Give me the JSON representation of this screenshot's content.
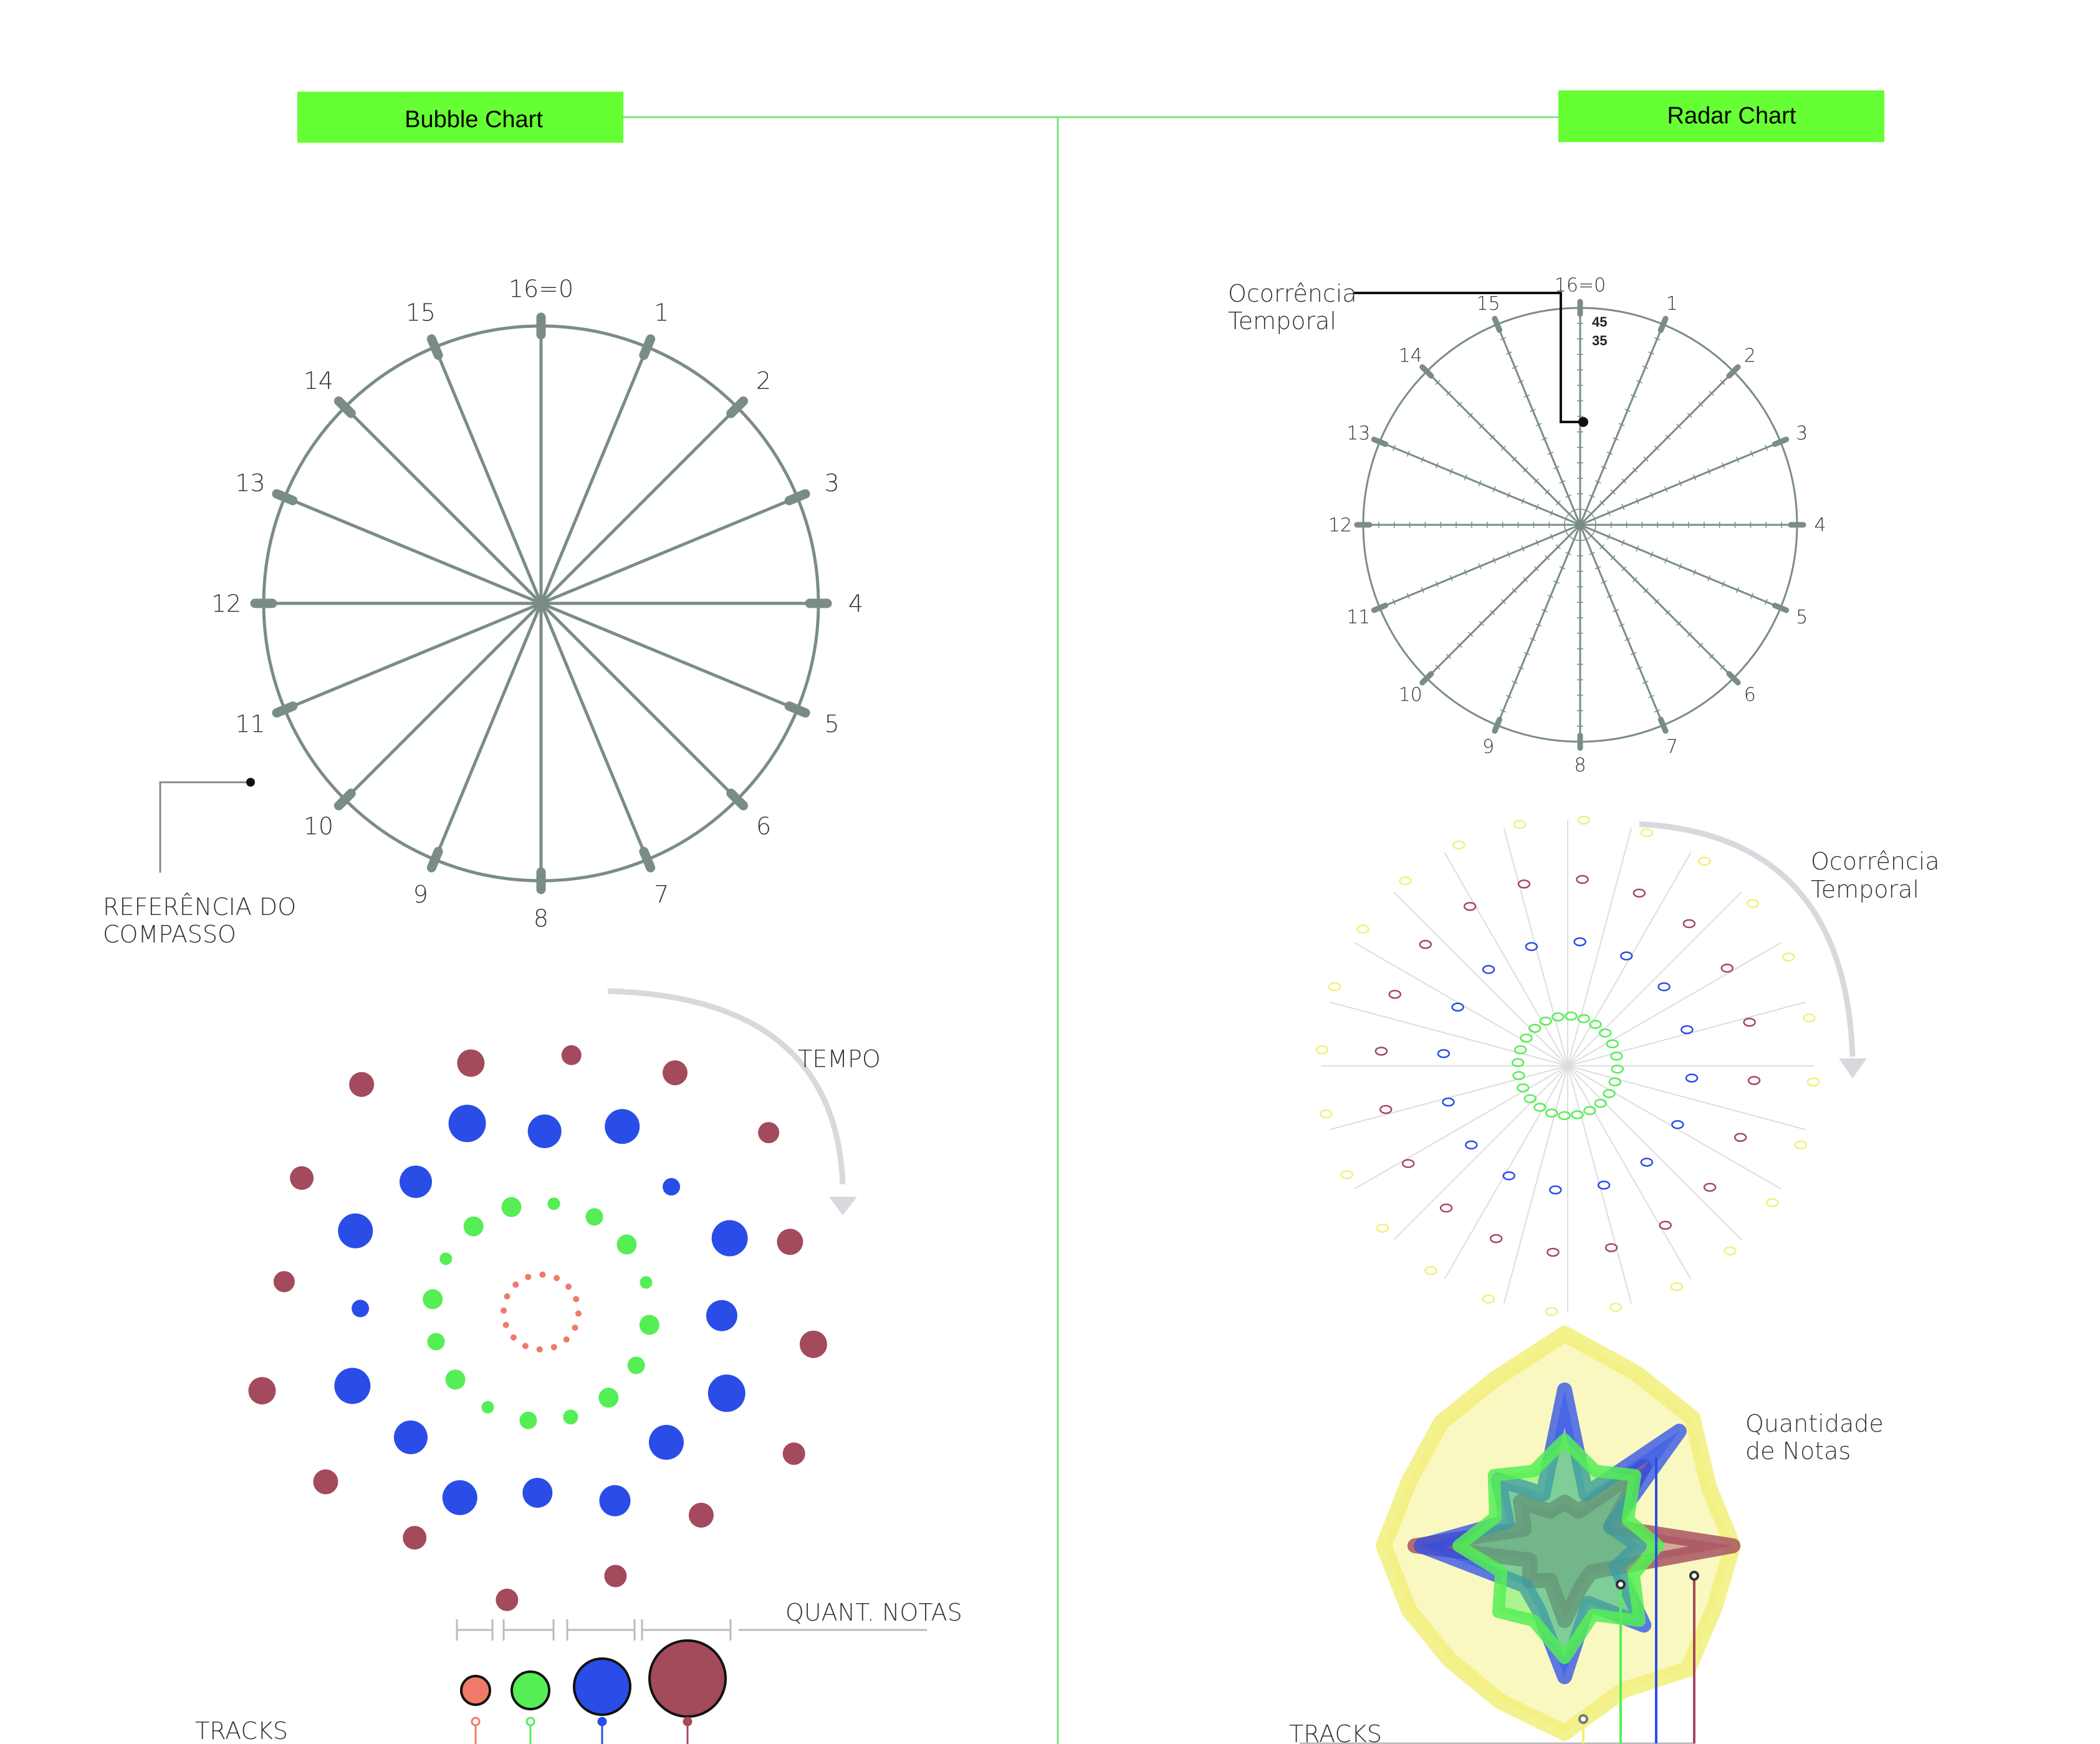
{
  "colors": {
    "accent_green": "#66ff33",
    "divider": "#7fe07f",
    "grid": "#7a8c88",
    "salmon": "#f07a6a",
    "green": "#55ee55",
    "blue": "#2a4de8",
    "maroon": "#a34a5c",
    "yellow": "#f2f07a",
    "arrow": "#d7d9de"
  },
  "headers": {
    "bubble": "Bubble Chart",
    "radar": "Radar Chart"
  },
  "clock": {
    "labels": [
      "16=0",
      "1",
      "2",
      "3",
      "4",
      "5",
      "6",
      "7",
      "8",
      "9",
      "10",
      "11",
      "12",
      "13",
      "14",
      "15"
    ]
  },
  "bubble": {
    "reference_line1": "REFERÊNCIA DO",
    "reference_line2": "COMPASSO",
    "tempo_label": "TEMPO",
    "quant_label": "QUANT. NOTAS",
    "tracks_label": "TRACKS",
    "rings": [
      {
        "track": "salmon",
        "count": 16,
        "size": 1
      },
      {
        "track": "green",
        "count": 16,
        "size": 2
      },
      {
        "track": "blue",
        "count": 16,
        "size": 3
      },
      {
        "track": "maroon",
        "count": 16,
        "size": 4
      }
    ]
  },
  "radar": {
    "occurrence_line1": "Ocorrência",
    "occurrence_line2": "Temporal",
    "occurrence2_line1": "Ocorrência",
    "occurrence2_line2": "Temporal",
    "quantity_line1": "Quantidade",
    "quantity_line2": "de Notas",
    "tracks_label": "TRACKS",
    "scale_values": [
      "45",
      "35"
    ]
  }
}
